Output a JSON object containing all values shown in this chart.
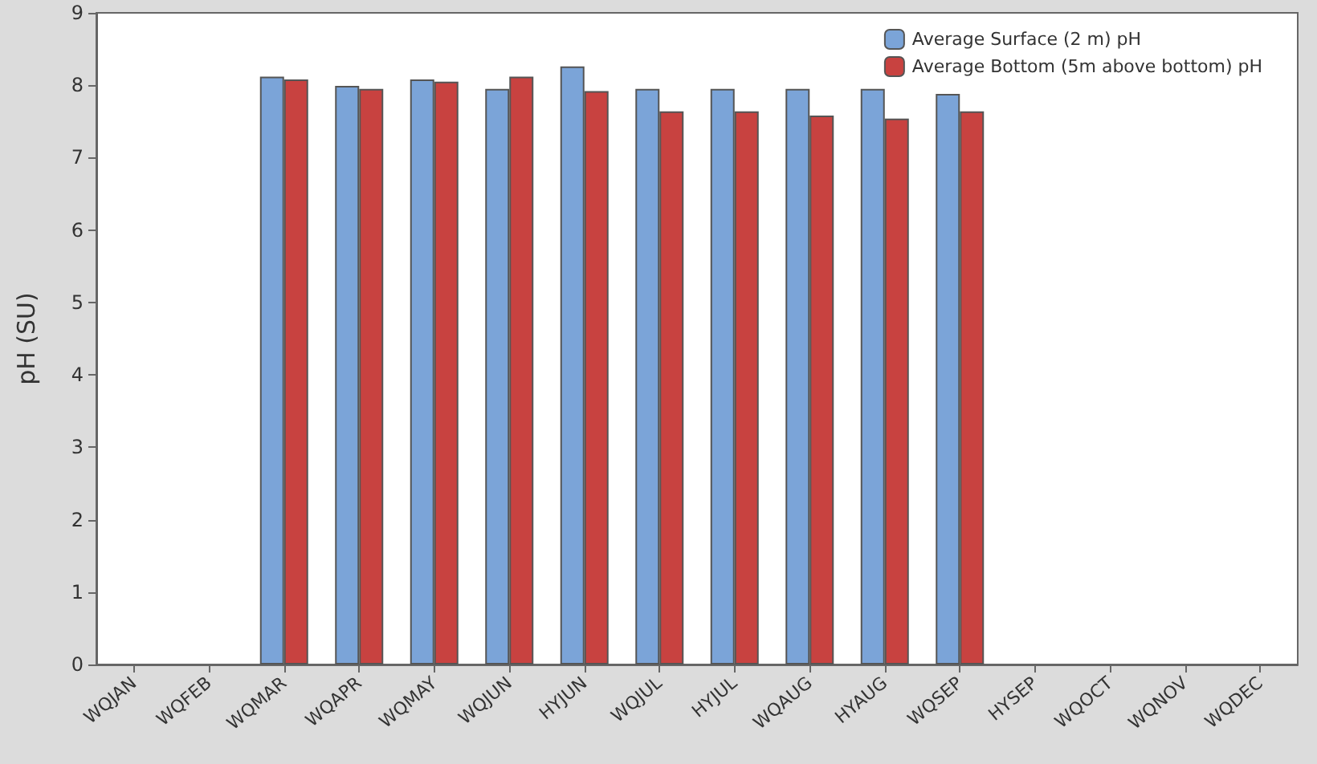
{
  "chart_data": {
    "type": "bar",
    "ylabel": "pH (SU)",
    "categories": [
      "WQJAN",
      "WQFEB",
      "WQMAR",
      "WQAPR",
      "WQMAY",
      "WQJUN",
      "HYJUN",
      "WQJUL",
      "HYJUL",
      "WQAUG",
      "HYAUG",
      "WQSEP",
      "HYSEP",
      "WQOCT",
      "WQNOV",
      "WQDEC"
    ],
    "series": [
      {
        "name": "Average Surface (2 m) pH",
        "color": "#7ba4d8",
        "values": [
          null,
          null,
          8.12,
          7.99,
          8.08,
          7.95,
          8.26,
          7.95,
          7.95,
          7.95,
          7.95,
          7.88,
          null,
          null,
          null,
          null
        ]
      },
      {
        "name": "Average Bottom (5m above bottom) pH",
        "color": "#c84240",
        "values": [
          null,
          null,
          8.08,
          7.95,
          8.05,
          8.12,
          7.92,
          7.64,
          7.64,
          7.58,
          7.54,
          7.64,
          null,
          null,
          null,
          null
        ]
      }
    ],
    "ylim": [
      0,
      9
    ],
    "yticks": [
      0,
      1,
      2,
      3,
      4,
      5,
      6,
      7,
      8,
      9
    ],
    "grid": false,
    "legend": "top right"
  }
}
